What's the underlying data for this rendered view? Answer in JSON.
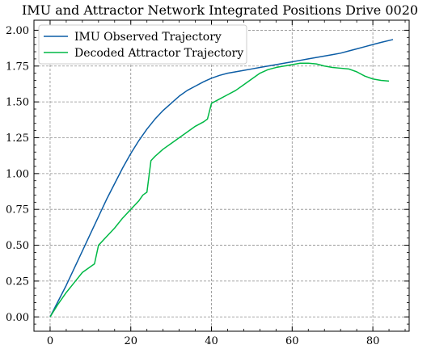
{
  "chart_data": {
    "type": "line",
    "title": "IMU and Attractor Network Integrated Positions Drive 0020",
    "xlabel": "",
    "ylabel": "",
    "xlim": [
      -4,
      89
    ],
    "ylim": [
      -0.1,
      2.07
    ],
    "x_ticks": [
      0,
      20,
      40,
      60,
      80
    ],
    "x_tick_labels": [
      "0",
      "20",
      "40",
      "60",
      "80"
    ],
    "y_ticks": [
      0.0,
      0.25,
      0.5,
      0.75,
      1.0,
      1.25,
      1.5,
      1.75,
      2.0
    ],
    "y_tick_labels": [
      "0.00",
      "0.25",
      "0.50",
      "0.75",
      "1.00",
      "1.25",
      "1.50",
      "1.75",
      "2.00"
    ],
    "grid": true,
    "legend_position": "top-left",
    "series": [
      {
        "name": "IMU Observed Trajectory",
        "color": "#0c5da5",
        "x": [
          0,
          2,
          4,
          6,
          8,
          10,
          12,
          14,
          16,
          18,
          20,
          22,
          24,
          26,
          28,
          30,
          32,
          34,
          36,
          38,
          40,
          42,
          44,
          46,
          48,
          50,
          52,
          54,
          56,
          58,
          60,
          62,
          64,
          66,
          68,
          70,
          72,
          74,
          76,
          78,
          80,
          82,
          85
        ],
        "y": [
          0.0,
          0.11,
          0.22,
          0.34,
          0.46,
          0.58,
          0.7,
          0.82,
          0.93,
          1.04,
          1.14,
          1.23,
          1.31,
          1.38,
          1.44,
          1.49,
          1.54,
          1.58,
          1.61,
          1.64,
          1.665,
          1.685,
          1.7,
          1.71,
          1.72,
          1.73,
          1.74,
          1.75,
          1.76,
          1.77,
          1.78,
          1.79,
          1.8,
          1.81,
          1.82,
          1.83,
          1.84,
          1.855,
          1.87,
          1.885,
          1.9,
          1.915,
          1.935
        ]
      },
      {
        "name": "Decoded Attractor Trajectory",
        "color": "#00b945",
        "x": [
          0,
          2,
          4,
          6,
          8,
          10,
          11,
          12,
          14,
          16,
          18,
          20,
          22,
          23,
          24,
          25,
          26,
          28,
          30,
          32,
          34,
          36,
          38,
          39,
          40,
          42,
          44,
          46,
          48,
          50,
          52,
          54,
          56,
          58,
          60,
          62,
          64,
          66,
          68,
          70,
          72,
          74,
          76,
          78,
          80,
          82,
          84
        ],
        "y": [
          0.0,
          0.09,
          0.17,
          0.24,
          0.31,
          0.35,
          0.37,
          0.5,
          0.56,
          0.62,
          0.69,
          0.75,
          0.81,
          0.85,
          0.87,
          1.09,
          1.12,
          1.17,
          1.21,
          1.25,
          1.29,
          1.33,
          1.36,
          1.38,
          1.49,
          1.52,
          1.55,
          1.58,
          1.62,
          1.66,
          1.7,
          1.725,
          1.74,
          1.75,
          1.76,
          1.77,
          1.77,
          1.765,
          1.75,
          1.74,
          1.735,
          1.73,
          1.71,
          1.68,
          1.66,
          1.65,
          1.645
        ]
      }
    ]
  }
}
